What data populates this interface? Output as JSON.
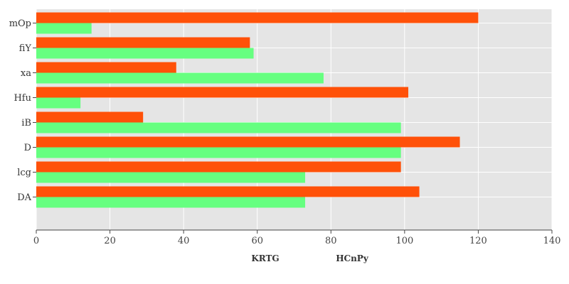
{
  "chart_data": {
    "type": "bar",
    "orientation": "horizontal",
    "categories": [
      "mOp",
      "fiY",
      "xa",
      "Hfu",
      "iB",
      "D",
      "lcg",
      "DA"
    ],
    "series": [
      {
        "name": "KRTG",
        "color": "#ff5109",
        "values": [
          120,
          58,
          38,
          101,
          29,
          115,
          99,
          104
        ]
      },
      {
        "name": "HCnPy",
        "color": "#66ff80",
        "values": [
          15,
          59,
          78,
          12,
          99,
          99,
          73,
          73
        ]
      }
    ],
    "xlim": [
      0,
      140
    ],
    "xticks": [
      "0",
      "20",
      "40",
      "60",
      "80",
      "100",
      "120",
      "140"
    ],
    "grid": true,
    "legend_position": "bottom"
  }
}
